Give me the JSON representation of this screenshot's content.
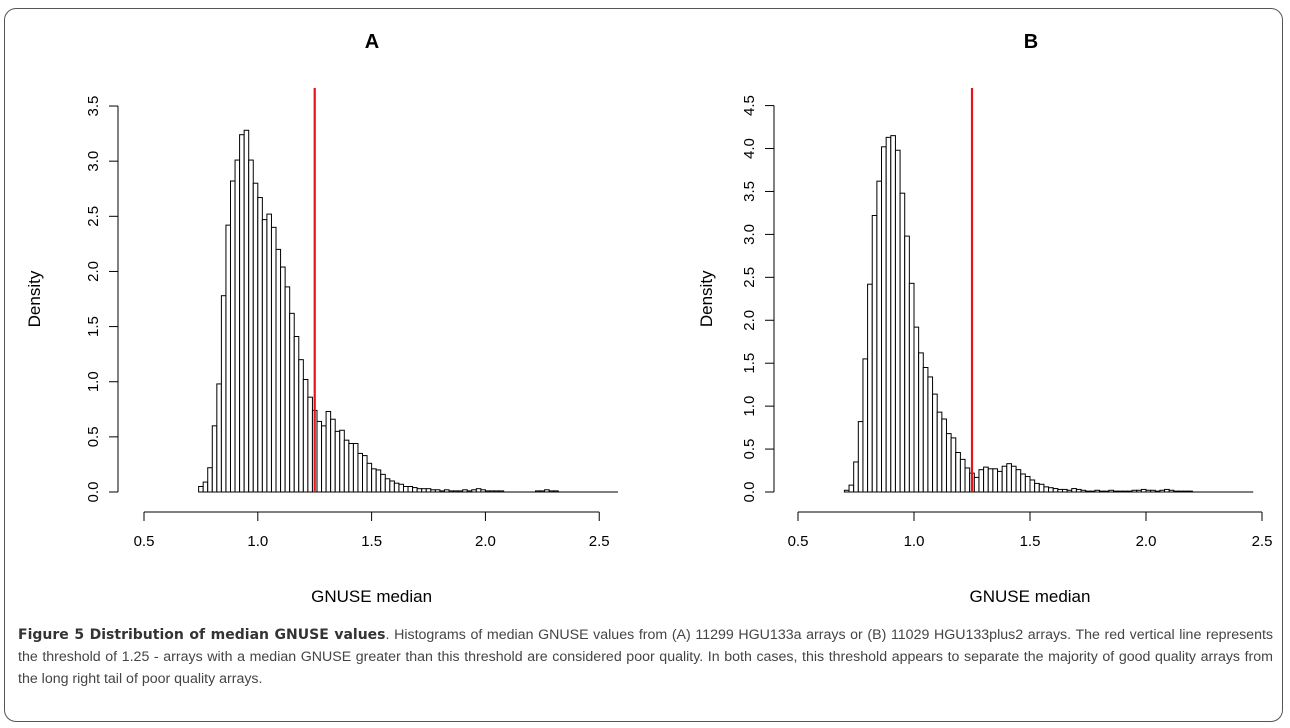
{
  "chart_data": [
    {
      "panel_label": "A",
      "type": "bar",
      "xlabel": "GNUSE median",
      "ylabel": "Density",
      "x_ticks": [
        "0.5",
        "1.0",
        "1.5",
        "2.0",
        "2.5"
      ],
      "y_ticks": [
        "0.0",
        "0.5",
        "1.0",
        "1.5",
        "2.0",
        "2.5",
        "3.0",
        "3.5"
      ],
      "xlim": [
        0.5,
        2.6
      ],
      "ylim": [
        0,
        3.6
      ],
      "threshold": 1.25,
      "threshold_color": "#e8141b",
      "bin_start": 0.74,
      "bin_width": 0.02,
      "values": [
        0.05,
        0.09,
        0.22,
        0.6,
        0.98,
        1.78,
        2.42,
        2.82,
        3.01,
        3.24,
        3.28,
        3.01,
        2.8,
        2.67,
        2.47,
        2.52,
        2.4,
        2.2,
        2.04,
        1.86,
        1.62,
        1.41,
        1.2,
        1.02,
        0.86,
        0.74,
        0.64,
        0.6,
        0.73,
        0.66,
        0.55,
        0.56,
        0.47,
        0.44,
        0.44,
        0.35,
        0.33,
        0.26,
        0.21,
        0.2,
        0.16,
        0.12,
        0.1,
        0.08,
        0.07,
        0.05,
        0.05,
        0.04,
        0.03,
        0.03,
        0.03,
        0.02,
        0.02,
        0.01,
        0.02,
        0.01,
        0.01,
        0.01,
        0.02,
        0.01,
        0.02,
        0.03,
        0.02,
        0.01,
        0.01,
        0.01,
        0.01,
        0.0,
        0.0,
        0.0,
        0.0,
        0.0,
        0.0,
        0.0,
        0.01,
        0.01,
        0.02,
        0.01,
        0.01,
        0.0,
        0.0,
        0.0,
        0.0,
        0.0,
        0.0,
        0.0,
        0.0,
        0.0,
        0.0,
        0.0,
        0.0,
        0.0
      ]
    },
    {
      "panel_label": "B",
      "type": "bar",
      "xlabel": "GNUSE median",
      "ylabel": "Density",
      "x_ticks": [
        "0.5",
        "1.0",
        "1.5",
        "2.0",
        "2.5"
      ],
      "y_ticks": [
        "0.0",
        "0.5",
        "1.0",
        "1.5",
        "2.0",
        "2.5",
        "3.0",
        "3.5",
        "4.0",
        "4.5"
      ],
      "xlim": [
        0.5,
        2.5
      ],
      "ylim": [
        0,
        4.6
      ],
      "threshold": 1.25,
      "threshold_color": "#e8141b",
      "bin_start": 0.7,
      "bin_width": 0.02,
      "values": [
        0.02,
        0.08,
        0.35,
        0.82,
        1.55,
        2.42,
        3.22,
        3.62,
        4.02,
        4.13,
        4.15,
        3.98,
        3.48,
        2.98,
        2.43,
        1.92,
        1.62,
        1.45,
        1.34,
        1.14,
        0.93,
        0.85,
        0.68,
        0.63,
        0.46,
        0.38,
        0.28,
        0.22,
        0.17,
        0.26,
        0.29,
        0.27,
        0.27,
        0.24,
        0.3,
        0.33,
        0.3,
        0.26,
        0.21,
        0.18,
        0.14,
        0.1,
        0.09,
        0.06,
        0.05,
        0.04,
        0.03,
        0.03,
        0.02,
        0.04,
        0.03,
        0.02,
        0.01,
        0.01,
        0.02,
        0.01,
        0.01,
        0.02,
        0.01,
        0.01,
        0.01,
        0.01,
        0.02,
        0.02,
        0.03,
        0.02,
        0.02,
        0.01,
        0.02,
        0.03,
        0.02,
        0.01,
        0.01,
        0.01,
        0.01,
        0.0,
        0.0,
        0.0,
        0.0,
        0.0,
        0.0,
        0.0,
        0.0,
        0.0,
        0.0,
        0.0,
        0.0,
        0.0
      ]
    }
  ],
  "caption": {
    "title": "Figure 5 Distribution of median GNUSE values",
    "text": ". Histograms of median GNUSE values from (A) 11299 HGU133a arrays or (B) 11029 HGU133plus2 arrays. The red vertical line represents the threshold of 1.25 - arrays with a median GNUSE greater than this threshold are considered poor quality. In both cases, this threshold appears to separate the majority of good quality arrays from the long right tail of poor quality arrays."
  }
}
